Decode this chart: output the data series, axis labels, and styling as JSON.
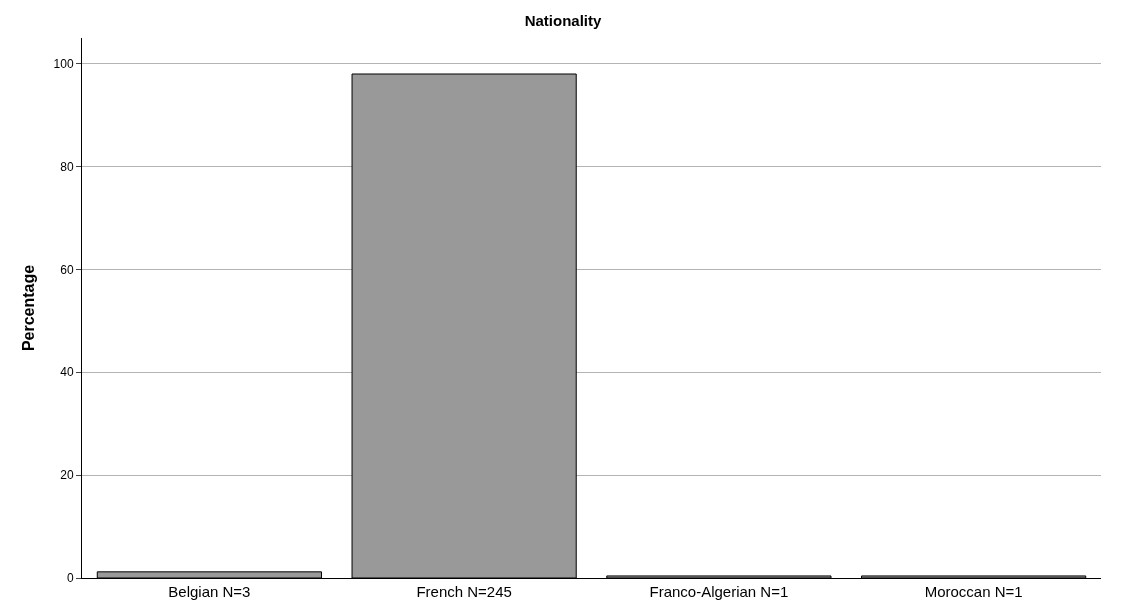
{
  "chart_data": {
    "type": "bar",
    "title": "Nationality",
    "ylabel": "Percentage",
    "categories": [
      "Belgian N=3",
      "French N=245",
      "Franco-Algerian N=1",
      "Moroccan N=1"
    ],
    "values": [
      1.2,
      98,
      0.4,
      0.4
    ],
    "color": "#999999",
    "ylim": [
      0,
      105
    ],
    "yticks": [
      0,
      20,
      40,
      60,
      80,
      100
    ],
    "grid": "y"
  }
}
